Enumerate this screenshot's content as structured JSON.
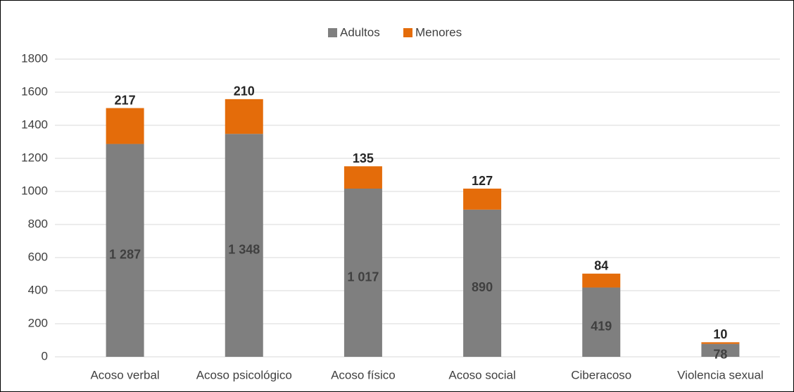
{
  "chart_data": {
    "type": "stacked_bar",
    "categories": [
      "Acoso verbal",
      "Acoso psicológico",
      "Acoso físico",
      "Acoso social",
      "Ciberacoso",
      "Violencia sexual"
    ],
    "series": [
      {
        "name": "Adultos",
        "color": "#7f7f7f",
        "values": [
          1287,
          1348,
          1017,
          890,
          419,
          78
        ],
        "value_labels": [
          "1 287",
          "1 348",
          "1 017",
          "890",
          "419",
          "78"
        ]
      },
      {
        "name": "Menores",
        "color": "#e46c0a",
        "values": [
          217,
          210,
          135,
          127,
          84,
          10
        ]
      }
    ],
    "ylim": [
      0,
      1800
    ],
    "yticks": [
      0,
      200,
      400,
      600,
      800,
      1000,
      1200,
      1400,
      1600,
      1800
    ],
    "grid": true,
    "legend": "top"
  }
}
